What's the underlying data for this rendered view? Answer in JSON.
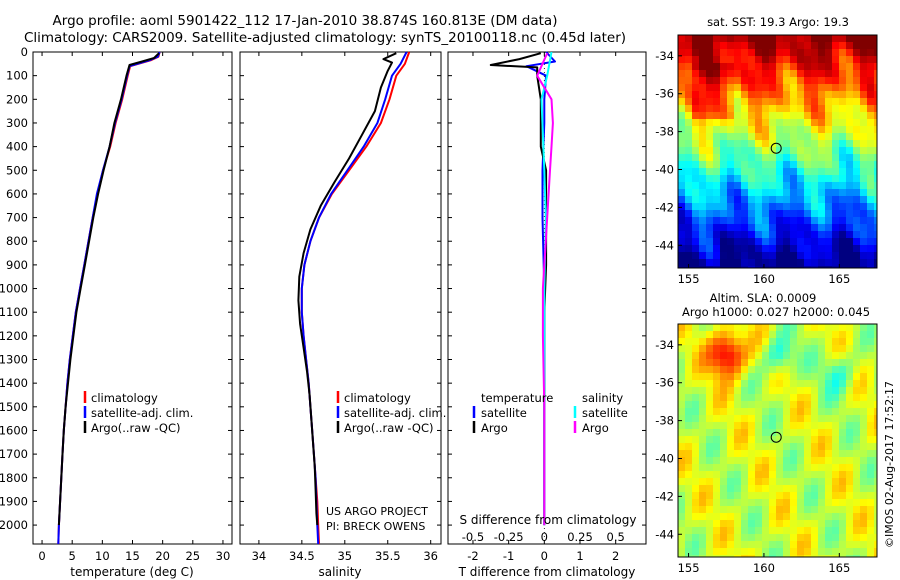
{
  "header": {
    "title_line1": "Argo profile: aoml 5901422_112 17-Jan-2010 38.874S 160.813E (DM data)",
    "title_line2": "Climatology: CARS2009. Satellite-adjusted climatology: synTS_20100118.nc (0.45d later)"
  },
  "depth_axis": {
    "ticks": [
      0,
      100,
      200,
      300,
      400,
      500,
      600,
      700,
      800,
      900,
      1000,
      1100,
      1200,
      1300,
      1400,
      1500,
      1600,
      1700,
      1800,
      1900,
      2000
    ],
    "ylim": [
      0,
      2080
    ]
  },
  "colors": {
    "climatology": "#ff0000",
    "satellite": "#0000ff",
    "argo": "#000000",
    "sal_satellite": "#00ffff",
    "sal_argo": "#ff00ff"
  },
  "chart_data": [
    {
      "id": "temperature",
      "type": "line",
      "xlabel": "temperature (deg C)",
      "xlim": [
        -1.5,
        31.5
      ],
      "xticks": [
        0,
        5,
        10,
        15,
        20,
        25,
        30
      ],
      "xticklabels": [
        "0",
        "5",
        "10",
        "15",
        "20",
        "25",
        "30"
      ],
      "legend": [
        "climatology",
        "satellite-adj. clim.",
        "Argo(..raw -QC)"
      ],
      "series": [
        {
          "name": "climatology",
          "color": "#ff0000",
          "points": [
            [
              19.5,
              0
            ],
            [
              19.3,
              20
            ],
            [
              18,
              35
            ],
            [
              14.6,
              60
            ],
            [
              14.2,
              100
            ],
            [
              13.3,
              200
            ],
            [
              12.2,
              300
            ],
            [
              11.3,
              400
            ],
            [
              10.1,
              500
            ],
            [
              9.2,
              600
            ],
            [
              8.4,
              700
            ],
            [
              7.7,
              800
            ],
            [
              7,
              900
            ],
            [
              6.3,
              1000
            ],
            [
              5.6,
              1100
            ],
            [
              5.1,
              1200
            ],
            [
              4.6,
              1300
            ],
            [
              4.2,
              1400
            ],
            [
              3.9,
              1500
            ],
            [
              3.6,
              1600
            ],
            [
              3.4,
              1700
            ],
            [
              3.2,
              1800
            ],
            [
              3,
              1900
            ],
            [
              2.8,
              2000
            ],
            [
              2.7,
              2080
            ]
          ]
        },
        {
          "name": "satellite-adj. clim.",
          "color": "#0000ff",
          "points": [
            [
              19.5,
              0
            ],
            [
              19.2,
              20
            ],
            [
              17.8,
              35
            ],
            [
              14.5,
              60
            ],
            [
              14.1,
              100
            ],
            [
              13.2,
              200
            ],
            [
              12.1,
              300
            ],
            [
              11.2,
              400
            ],
            [
              10.1,
              500
            ],
            [
              9.1,
              600
            ],
            [
              8.4,
              700
            ],
            [
              7.7,
              800
            ],
            [
              7,
              900
            ],
            [
              6.3,
              1000
            ],
            [
              5.6,
              1100
            ],
            [
              5.1,
              1200
            ],
            [
              4.6,
              1300
            ],
            [
              4.2,
              1400
            ],
            [
              3.9,
              1500
            ],
            [
              3.6,
              1600
            ],
            [
              3.4,
              1700
            ],
            [
              3.2,
              1800
            ],
            [
              3,
              1900
            ],
            [
              2.8,
              2000
            ],
            [
              2.7,
              2080
            ]
          ]
        },
        {
          "name": "Argo(..raw -QC)",
          "color": "#000000",
          "points": [
            [
              19.4,
              5
            ],
            [
              18.6,
              25
            ],
            [
              16.6,
              40
            ],
            [
              14.5,
              55
            ],
            [
              14,
              100
            ],
            [
              13.1,
              200
            ],
            [
              12,
              300
            ],
            [
              11.2,
              400
            ],
            [
              10.2,
              500
            ],
            [
              9.3,
              600
            ],
            [
              8.5,
              700
            ],
            [
              7.8,
              800
            ],
            [
              7.1,
              900
            ],
            [
              6.4,
              1000
            ],
            [
              5.7,
              1100
            ],
            [
              5.2,
              1200
            ],
            [
              4.7,
              1300
            ],
            [
              4.3,
              1400
            ],
            [
              3.9,
              1500
            ],
            [
              3.6,
              1600
            ],
            [
              3.4,
              1700
            ],
            [
              3.2,
              1800
            ],
            [
              3,
              1900
            ],
            [
              2.8,
              2000
            ]
          ]
        }
      ]
    },
    {
      "id": "salinity",
      "type": "line",
      "xlabel": "salinity",
      "xlim": [
        33.78,
        36.12
      ],
      "xticks": [
        34,
        34.5,
        35,
        35.5,
        36
      ],
      "xticklabels": [
        "34",
        "34.5",
        "35",
        "35.5",
        "36"
      ],
      "legend": [
        "climatology",
        "satellite-adj. clim.",
        "Argo(..raw -QC)"
      ],
      "annotation_line1": "US ARGO PROJECT",
      "annotation_line2": "PI: BRECK OWENS",
      "series": [
        {
          "name": "climatology",
          "color": "#ff0000",
          "points": [
            [
              35.75,
              0
            ],
            [
              35.7,
              50
            ],
            [
              35.6,
              100
            ],
            [
              35.52,
              200
            ],
            [
              35.42,
              300
            ],
            [
              35.25,
              400
            ],
            [
              35.05,
              500
            ],
            [
              34.85,
              600
            ],
            [
              34.7,
              700
            ],
            [
              34.6,
              800
            ],
            [
              34.53,
              900
            ],
            [
              34.5,
              1000
            ],
            [
              34.5,
              1100
            ],
            [
              34.52,
              1200
            ],
            [
              34.55,
              1300
            ],
            [
              34.58,
              1400
            ],
            [
              34.6,
              1500
            ],
            [
              34.62,
              1600
            ],
            [
              34.64,
              1700
            ],
            [
              34.66,
              1800
            ],
            [
              34.68,
              1900
            ],
            [
              34.69,
              2000
            ],
            [
              34.7,
              2080
            ]
          ]
        },
        {
          "name": "satellite-adj. clim.",
          "color": "#0000ff",
          "points": [
            [
              35.72,
              0
            ],
            [
              35.65,
              50
            ],
            [
              35.55,
              100
            ],
            [
              35.47,
              200
            ],
            [
              35.38,
              300
            ],
            [
              35.22,
              400
            ],
            [
              35.03,
              500
            ],
            [
              34.84,
              600
            ],
            [
              34.7,
              700
            ],
            [
              34.6,
              800
            ],
            [
              34.53,
              900
            ],
            [
              34.5,
              1000
            ],
            [
              34.5,
              1100
            ],
            [
              34.52,
              1200
            ],
            [
              34.55,
              1300
            ],
            [
              34.58,
              1400
            ],
            [
              34.6,
              1500
            ],
            [
              34.62,
              1600
            ],
            [
              34.64,
              1700
            ],
            [
              34.66,
              1800
            ],
            [
              34.67,
              1900
            ],
            [
              34.68,
              2000
            ],
            [
              34.69,
              2080
            ]
          ]
        },
        {
          "name": "Argo(..raw -QC)",
          "color": "#000000",
          "points": [
            [
              35.6,
              5
            ],
            [
              35.45,
              30
            ],
            [
              35.55,
              45
            ],
            [
              35.5,
              80
            ],
            [
              35.42,
              150
            ],
            [
              35.35,
              250
            ],
            [
              35.2,
              350
            ],
            [
              35.05,
              450
            ],
            [
              34.88,
              550
            ],
            [
              34.72,
              650
            ],
            [
              34.6,
              750
            ],
            [
              34.52,
              850
            ],
            [
              34.47,
              950
            ],
            [
              34.46,
              1050
            ],
            [
              34.48,
              1150
            ],
            [
              34.52,
              1250
            ],
            [
              34.56,
              1350
            ],
            [
              34.59,
              1450
            ],
            [
              34.61,
              1550
            ],
            [
              34.63,
              1650
            ],
            [
              34.65,
              1750
            ],
            [
              34.66,
              1850
            ],
            [
              34.67,
              1950
            ],
            [
              34.68,
              2000
            ]
          ]
        }
      ]
    },
    {
      "id": "difference",
      "type": "line",
      "xlabel": "T difference from climatology",
      "top_label": "S difference from climatology",
      "xlim": [
        -2.7,
        2.85
      ],
      "xticks": [
        -2,
        -1,
        0,
        1,
        2
      ],
      "xticklabels": [
        "-2",
        "-1",
        "0",
        "1",
        "2"
      ],
      "sticks": [
        -0.5,
        -0.25,
        0,
        0.25,
        0.5
      ],
      "sticklabels": [
        "-0.5",
        "-0.25",
        "0",
        "0.25",
        "0.5"
      ],
      "sscale": 4,
      "legend_temperature": "temperature",
      "legend_salinity": "salinity",
      "legend_satellite": "satellite",
      "legend_argo": "Argo",
      "series": [
        {
          "name": "T satellite",
          "quantity": "T",
          "color": "#0000ff",
          "points": [
            [
              0.05,
              0
            ],
            [
              0.3,
              40
            ],
            [
              -0.5,
              60
            ],
            [
              0.05,
              100
            ],
            [
              0,
              200
            ],
            [
              0,
              300
            ],
            [
              -0.05,
              500
            ],
            [
              -0.05,
              700
            ],
            [
              0,
              1000
            ],
            [
              0,
              1500
            ],
            [
              0,
              2000
            ]
          ]
        },
        {
          "name": "T Argo",
          "quantity": "T",
          "color": "#000000",
          "points": [
            [
              -0.1,
              5
            ],
            [
              -0.7,
              30
            ],
            [
              -1.5,
              55
            ],
            [
              -0.2,
              65
            ],
            [
              -0.2,
              100
            ],
            [
              -0.1,
              200
            ],
            [
              -0.1,
              400
            ],
            [
              0.05,
              500
            ],
            [
              0.05,
              700
            ],
            [
              0.05,
              900
            ],
            [
              0,
              1100
            ],
            [
              0,
              1500
            ],
            [
              0,
              2000
            ]
          ]
        },
        {
          "name": "S satellite",
          "quantity": "S",
          "color": "#00ffff",
          "points": [
            [
              0.05,
              0
            ],
            [
              0.02,
              100
            ],
            [
              -0.02,
              200
            ],
            [
              0,
              500
            ],
            [
              0.01,
              700
            ],
            [
              0,
              1000
            ],
            [
              0,
              1500
            ],
            [
              0,
              2000
            ]
          ]
        },
        {
          "name": "S Argo",
          "quantity": "S",
          "color": "#ff00ff",
          "points": [
            [
              0.02,
              5
            ],
            [
              -0.05,
              100
            ],
            [
              0.05,
              200
            ],
            [
              0.06,
              300
            ],
            [
              0.05,
              400
            ],
            [
              0.04,
              500
            ],
            [
              0.03,
              600
            ],
            [
              0.02,
              700
            ],
            [
              0.01,
              800
            ],
            [
              0,
              900
            ],
            [
              -0.01,
              1000
            ],
            [
              -0.01,
              1200
            ],
            [
              0,
              1500
            ],
            [
              0,
              2000
            ]
          ]
        }
      ]
    },
    {
      "id": "sst_map",
      "type": "heatmap",
      "title": "sat. SST: 19.3  Argo: 19.3",
      "xlim": [
        154.3,
        167.5
      ],
      "ylim": [
        -45.2,
        -32.9
      ],
      "xticks": [
        155,
        160,
        165
      ],
      "yticks": [
        -34,
        -36,
        -38,
        -40,
        -42,
        -44
      ],
      "marker": {
        "lon": 160.813,
        "lat": -38.874
      },
      "colorscale": "jet"
    },
    {
      "id": "sla_map",
      "type": "heatmap",
      "title_line1": "Altim. SLA: 0.0009",
      "title_line2": "Argo h1000: 0.027 h2000: 0.045",
      "xlim": [
        154.3,
        167.5
      ],
      "ylim": [
        -45.2,
        -32.9
      ],
      "xticks": [
        155,
        160,
        165
      ],
      "yticks": [
        -34,
        -36,
        -38,
        -40,
        -42,
        -44
      ],
      "marker": {
        "lon": 160.813,
        "lat": -38.874
      },
      "colorscale": "jet"
    }
  ],
  "footer": {
    "credit": "©IMOS 02-Aug-2017 17:52:17"
  }
}
